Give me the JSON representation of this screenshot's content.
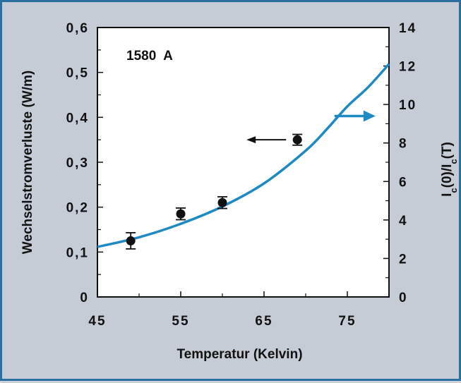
{
  "chart_data": {
    "type": "scatter",
    "annotation": "1580  A",
    "xlabel": "Temperatur (Kelvin)",
    "ylabel_left": "Wechselstromverluste (W/m)",
    "ylabel_right_parts": [
      "I",
      "c",
      "(0)/I",
      "c",
      "(T)"
    ],
    "xlim": [
      45,
      80
    ],
    "ylim_left": [
      0,
      0.6
    ],
    "ylim_right": [
      0,
      14
    ],
    "x_ticks": [
      45,
      55,
      65,
      75
    ],
    "x_tick_labels": [
      "45",
      "55",
      "65",
      "75"
    ],
    "y_left_ticks": [
      0,
      0.1,
      0.2,
      0.3,
      0.4,
      0.5,
      0.6
    ],
    "y_left_tick_labels": [
      "0",
      "0,1",
      "0,2",
      "0,3",
      "0,4",
      "0,5",
      "0,6"
    ],
    "y_right_ticks": [
      0,
      2,
      4,
      6,
      8,
      10,
      12,
      14
    ],
    "y_right_tick_labels": [
      "0",
      "2",
      "4",
      "6",
      "8",
      "10",
      "12",
      "14"
    ],
    "series": [
      {
        "kind": "points",
        "axis": "left",
        "color": "#111111",
        "x": [
          49,
          55,
          60,
          69
        ],
        "y": [
          0.125,
          0.185,
          0.21,
          0.35
        ],
        "error": [
          0.018,
          0.013,
          0.013,
          0.012
        ]
      },
      {
        "kind": "curve",
        "axis": "right",
        "color": "#1e8ac4",
        "x": [
          45,
          50,
          55,
          60,
          65,
          70,
          72.5,
          75,
          77.5,
          80
        ],
        "y": [
          2.6,
          3.1,
          3.8,
          4.7,
          5.9,
          7.6,
          8.7,
          9.9,
          10.9,
          12.1
        ]
      }
    ],
    "arrows": [
      {
        "points_to": "left",
        "x": 69,
        "y_left": 0.35,
        "color": "#111111"
      },
      {
        "points_to": "right",
        "x": 76,
        "y_right": 9.4,
        "color": "#1e8ac4"
      }
    ],
    "grid": false
  }
}
